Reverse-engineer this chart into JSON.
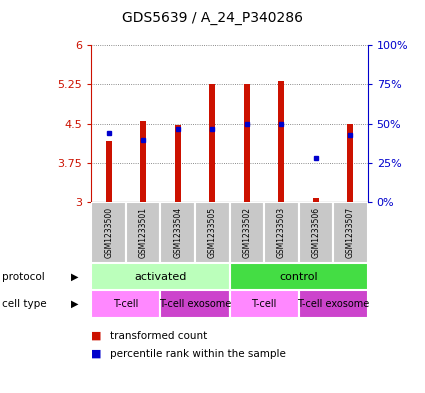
{
  "title": "GDS5639 / A_24_P340286",
  "samples": [
    "GSM1233500",
    "GSM1233501",
    "GSM1233504",
    "GSM1233505",
    "GSM1233502",
    "GSM1233503",
    "GSM1233506",
    "GSM1233507"
  ],
  "red_values": [
    4.18,
    4.55,
    4.47,
    5.25,
    5.25,
    5.32,
    3.08,
    4.5
  ],
  "blue_percentiles": [
    44,
    40,
    47,
    47,
    50,
    50,
    28,
    43
  ],
  "y_min": 3,
  "y_max": 6,
  "y_ticks": [
    3,
    3.75,
    4.5,
    5.25,
    6
  ],
  "right_y_ticks": [
    0,
    25,
    50,
    75,
    100
  ],
  "right_y_labels": [
    "0%",
    "25%",
    "50%",
    "75%",
    "100%"
  ],
  "protocol_groups": [
    {
      "label": "activated",
      "start": 0,
      "end": 4,
      "color": "#bbffbb"
    },
    {
      "label": "control",
      "start": 4,
      "end": 8,
      "color": "#44dd44"
    }
  ],
  "cell_type_groups": [
    {
      "label": "T-cell",
      "start": 0,
      "end": 2,
      "color": "#ff88ff"
    },
    {
      "label": "T-cell exosome",
      "start": 2,
      "end": 4,
      "color": "#cc44cc"
    },
    {
      "label": "T-cell",
      "start": 4,
      "end": 6,
      "color": "#ff88ff"
    },
    {
      "label": "T-cell exosome",
      "start": 6,
      "end": 8,
      "color": "#cc44cc"
    }
  ],
  "bar_color": "#cc1100",
  "dot_color": "#0000cc",
  "bar_width": 0.18,
  "legend_red": "transformed count",
  "legend_blue": "percentile rank within the sample",
  "bg_color": "#ffffff",
  "grid_color": "#666666",
  "left_tick_color": "#cc1100",
  "right_tick_color": "#0000cc",
  "sample_box_color": "#c8c8c8"
}
